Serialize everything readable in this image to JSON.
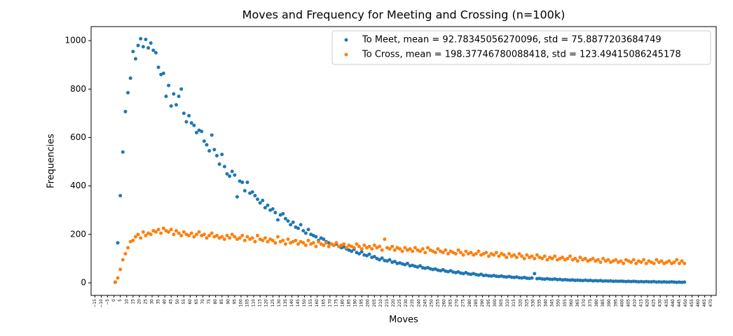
{
  "chart_data": {
    "type": "scatter",
    "title": "Moves and Frequency for Meeting and Crossing (n=100k)",
    "xlabel": "Moves",
    "ylabel": "Frequencies",
    "xlim": [
      -18,
      474
    ],
    "ylim": [
      -52,
      1058
    ],
    "xticks": [
      {
        "value": -15,
        "label": "−15"
      },
      {
        "value": -10,
        "label": "−10"
      },
      {
        "value": -5,
        "label": "−5"
      },
      0,
      5,
      10,
      15,
      20,
      25,
      30,
      35,
      40,
      45,
      50,
      55,
      60,
      65,
      70,
      75,
      80,
      85,
      90,
      95,
      100,
      105,
      110,
      115,
      120,
      125,
      130,
      135,
      140,
      145,
      150,
      155,
      160,
      165,
      170,
      175,
      180,
      185,
      190,
      195,
      200,
      205,
      210,
      215,
      220,
      225,
      230,
      235,
      240,
      245,
      250,
      255,
      260,
      265,
      270,
      275,
      280,
      285,
      290,
      295,
      300,
      305,
      310,
      315,
      320,
      325,
      330,
      335,
      340,
      345,
      350,
      355,
      360,
      365,
      370,
      375,
      380,
      385,
      390,
      395,
      400,
      405,
      410,
      415,
      420,
      425,
      430,
      435,
      440,
      445,
      450,
      455,
      460,
      465,
      470
    ],
    "yticks": [
      0,
      200,
      400,
      600,
      800,
      1000
    ],
    "legend": "upper right",
    "x": [
      1,
      3,
      5,
      7,
      9,
      11,
      13,
      15,
      17,
      19,
      21,
      23,
      25,
      27,
      29,
      31,
      33,
      35,
      37,
      39,
      41,
      43,
      45,
      47,
      49,
      51,
      53,
      55,
      57,
      59,
      61,
      63,
      65,
      67,
      69,
      71,
      73,
      75,
      77,
      79,
      81,
      83,
      85,
      87,
      89,
      91,
      93,
      95,
      97,
      99,
      101,
      103,
      105,
      107,
      109,
      111,
      113,
      115,
      117,
      119,
      121,
      123,
      125,
      127,
      129,
      131,
      133,
      135,
      137,
      139,
      141,
      143,
      145,
      147,
      149,
      151,
      153,
      155,
      157,
      159,
      161,
      163,
      165,
      167,
      169,
      171,
      173,
      175,
      177,
      179,
      181,
      183,
      185,
      187,
      189,
      191,
      193,
      195,
      197,
      199,
      201,
      203,
      205,
      207,
      209,
      211,
      213,
      215,
      217,
      219,
      221,
      223,
      225,
      227,
      229,
      231,
      233,
      235,
      237,
      239,
      241,
      243,
      245,
      247,
      249,
      251,
      253,
      255,
      257,
      259,
      261,
      263,
      265,
      267,
      269,
      271,
      273,
      275,
      277,
      279,
      281,
      283,
      285,
      287,
      289,
      291,
      293,
      295,
      297,
      299,
      301,
      303,
      305,
      307,
      309,
      311,
      313,
      315,
      317,
      319,
      321,
      323,
      325,
      327,
      329,
      331,
      333,
      335,
      337,
      339,
      341,
      343,
      345,
      347,
      349,
      351,
      353,
      355,
      357,
      359,
      361,
      363,
      365,
      367,
      369,
      371,
      373,
      375,
      377,
      379,
      381,
      383,
      385,
      387,
      389,
      391,
      393,
      395,
      397,
      399,
      401,
      403,
      405,
      407,
      409,
      411,
      413,
      415,
      417,
      419,
      421,
      423,
      425,
      427,
      429,
      431,
      433,
      435,
      437,
      439,
      441,
      443,
      445,
      447,
      449
    ],
    "series": [
      {
        "name": "To Meet, mean = 92.78345056270096, std = 75.8877203684749",
        "color": "#1f77b4",
        "values": [
          3,
          165,
          360,
          540,
          707,
          785,
          845,
          955,
          925,
          980,
          1008,
          975,
          1005,
          970,
          990,
          960,
          950,
          890,
          860,
          865,
          770,
          815,
          730,
          780,
          735,
          770,
          800,
          700,
          665,
          690,
          660,
          650,
          620,
          630,
          625,
          585,
          570,
          545,
          610,
          550,
          525,
          490,
          530,
          480,
          450,
          440,
          460,
          445,
          355,
          420,
          415,
          380,
          415,
          370,
          375,
          360,
          345,
          330,
          340,
          310,
          320,
          300,
          305,
          290,
          260,
          280,
          285,
          265,
          255,
          240,
          250,
          230,
          225,
          240,
          215,
          205,
          220,
          200,
          195,
          190,
          175,
          185,
          180,
          170,
          165,
          160,
          155,
          160,
          150,
          145,
          148,
          140,
          135,
          130,
          138,
          125,
          120,
          128,
          115,
          112,
          118,
          105,
          108,
          100,
          95,
          102,
          92,
          90,
          95,
          85,
          88,
          80,
          82,
          78,
          75,
          80,
          70,
          72,
          68,
          65,
          70,
          62,
          60,
          63,
          58,
          55,
          57,
          52,
          50,
          54,
          48,
          46,
          50,
          44,
          42,
          45,
          40,
          38,
          42,
          37,
          35,
          38,
          34,
          32,
          35,
          30,
          31,
          29,
          28,
          30,
          27,
          26,
          28,
          25,
          24,
          26,
          23,
          22,
          24,
          21,
          20,
          22,
          19,
          18,
          20,
          38,
          17,
          18,
          16,
          15,
          17,
          15,
          14,
          16,
          13,
          14,
          12,
          13,
          12,
          11,
          12,
          10,
          11,
          10,
          9,
          11,
          9,
          10,
          8,
          9,
          8,
          9,
          7,
          8,
          7,
          8,
          6,
          7,
          6,
          7,
          6,
          5,
          6,
          5,
          6,
          5,
          4,
          5,
          4,
          5,
          4,
          4,
          5,
          3,
          4,
          3,
          4,
          3,
          3,
          4,
          3,
          2,
          3,
          2,
          3
        ]
      },
      {
        "name": "To Cross, mean = 198.37746780088418, std = 123.49415086245178",
        "color": "#ff7f0e",
        "values": [
          2,
          20,
          55,
          95,
          120,
          145,
          170,
          175,
          190,
          200,
          185,
          210,
          195,
          205,
          200,
          215,
          210,
          220,
          205,
          225,
          215,
          210,
          220,
          200,
          215,
          205,
          195,
          210,
          200,
          195,
          205,
          190,
          200,
          210,
          195,
          200,
          185,
          195,
          205,
          190,
          195,
          185,
          190,
          180,
          195,
          185,
          200,
          190,
          180,
          185,
          195,
          175,
          190,
          180,
          185,
          170,
          195,
          180,
          175,
          185,
          170,
          180,
          175,
          165,
          190,
          170,
          175,
          160,
          180,
          165,
          170,
          175,
          160,
          170,
          165,
          155,
          175,
          160,
          165,
          150,
          170,
          160,
          155,
          165,
          150,
          160,
          155,
          165,
          150,
          155,
          160,
          145,
          155,
          150,
          145,
          160,
          150,
          140,
          155,
          145,
          150,
          140,
          155,
          145,
          150,
          135,
          180,
          145,
          140,
          150,
          135,
          145,
          140,
          130,
          145,
          135,
          140,
          130,
          145,
          135,
          130,
          140,
          125,
          145,
          135,
          130,
          125,
          140,
          130,
          125,
          135,
          120,
          130,
          125,
          120,
          135,
          125,
          115,
          130,
          120,
          125,
          115,
          120,
          130,
          115,
          120,
          125,
          110,
          120,
          115,
          125,
          110,
          120,
          115,
          105,
          120,
          110,
          115,
          105,
          120,
          110,
          100,
          115,
          105,
          110,
          100,
          115,
          105,
          100,
          110,
          95,
          105,
          100,
          110,
          95,
          100,
          105,
          95,
          100,
          110,
          95,
          100,
          90,
          105,
          95,
          100,
          90,
          95,
          100,
          90,
          95,
          85,
          100,
          90,
          95,
          85,
          90,
          95,
          85,
          90,
          80,
          95,
          90,
          85,
          95,
          80,
          90,
          85,
          95,
          80,
          90,
          85,
          80,
          95,
          85,
          90,
          80,
          85,
          90,
          80,
          85,
          95,
          80,
          90,
          80
        ]
      }
    ]
  }
}
